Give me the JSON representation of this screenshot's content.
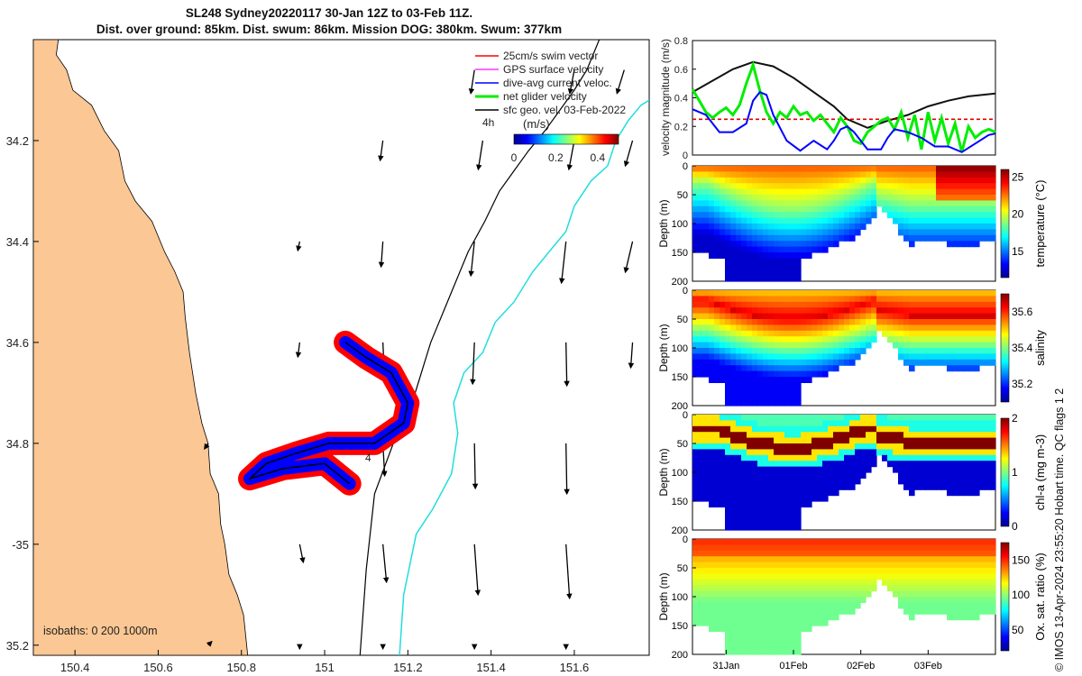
{
  "title_line1": "SL248 Sydney20220117 30-Jan 12Z to 03-Feb 11Z.",
  "title_line2": "Dist. over ground: 85km. Dist. swum: 86km. Mission DOG: 380km. Swum: 377km",
  "credit": "© IMOS 13-Apr-2024 23:55:20 Hobart time. QC flags 1  2",
  "colors": {
    "land": "#fbc794",
    "sea": "#ffffff",
    "swim_vector": "#ff0000",
    "gps": "#ff33ff",
    "dive_avg": "#0000ff",
    "net_glider": "#00ee00",
    "sfc_geo": "#000000",
    "isobath_200": "#000000",
    "isobath_1000": "#22dddd",
    "magnitude_black": "#111111",
    "red_dashed": "#dd0000"
  },
  "chart_data": [
    {
      "type": "map",
      "name": "glider-track-map",
      "xlim": [
        150.3,
        151.78
      ],
      "ylim": [
        -35.22,
        -34.0
      ],
      "x_ticks": [
        150.4,
        150.6,
        150.8,
        151,
        151.2,
        151.4,
        151.6
      ],
      "x_tick_labels": [
        "150.4",
        "150.6",
        "150.8",
        "151",
        "151.2",
        "151.4",
        "151.6"
      ],
      "y_ticks": [
        -34.2,
        -34.4,
        -34.6,
        -34.8,
        -35,
        -35.2
      ],
      "y_tick_labels": [
        "34.2",
        "34.4",
        "34.6",
        "34.8",
        "-35",
        "35.2"
      ],
      "legend": {
        "placement": "top-right",
        "items": [
          {
            "label": "25cm/s swim vector",
            "color": "#ff0000"
          },
          {
            "label": "GPS surface velocity",
            "color": "#ff33ff"
          },
          {
            "label": "dive-avg current veloc.",
            "color": "#0000ff"
          },
          {
            "label": "net glider velocity",
            "color": "#00ee00"
          },
          {
            "label": "sfc geo. vel. 03-Feb-2022",
            "color": "#000000"
          }
        ]
      },
      "colorbar": {
        "label": "(m/s)",
        "ticks": [
          0,
          0.2,
          0.4
        ],
        "tick_labels": [
          "0",
          "0.2",
          "0.4"
        ],
        "range": [
          0,
          0.5
        ]
      },
      "label_4h": "4h",
      "track_label": "4",
      "isobaths_label": "isobaths: 0   200  1000m",
      "coastline": [
        [
          150.3,
          -34.0
        ],
        [
          150.36,
          -34.0
        ],
        [
          150.355,
          -34.03
        ],
        [
          150.38,
          -34.06
        ],
        [
          150.395,
          -34.1
        ],
        [
          150.44,
          -34.13
        ],
        [
          150.47,
          -34.18
        ],
        [
          150.505,
          -34.22
        ],
        [
          150.52,
          -34.28
        ],
        [
          150.545,
          -34.32
        ],
        [
          150.585,
          -34.36
        ],
        [
          150.615,
          -34.42
        ],
        [
          150.64,
          -34.46
        ],
        [
          150.66,
          -34.5
        ],
        [
          150.665,
          -34.55
        ],
        [
          150.675,
          -34.62
        ],
        [
          150.69,
          -34.7
        ],
        [
          150.705,
          -34.76
        ],
        [
          150.72,
          -34.8
        ],
        [
          150.725,
          -34.86
        ],
        [
          150.745,
          -34.9
        ],
        [
          150.75,
          -34.96
        ],
        [
          150.76,
          -35.0
        ],
        [
          150.77,
          -35.06
        ],
        [
          150.79,
          -35.1
        ],
        [
          150.805,
          -35.14
        ],
        [
          150.81,
          -35.18
        ],
        [
          150.815,
          -35.22
        ],
        [
          150.3,
          -35.22
        ]
      ],
      "isobath_200": [
        [
          151.085,
          -35.22
        ],
        [
          151.1,
          -35.05
        ],
        [
          151.12,
          -34.9
        ],
        [
          151.165,
          -34.8
        ],
        [
          151.21,
          -34.72
        ],
        [
          151.255,
          -34.6
        ],
        [
          151.305,
          -34.5
        ],
        [
          151.345,
          -34.42
        ],
        [
          151.385,
          -34.36
        ],
        [
          151.42,
          -34.3
        ],
        [
          151.455,
          -34.26
        ],
        [
          151.49,
          -34.22
        ],
        [
          151.53,
          -34.18
        ],
        [
          151.565,
          -34.14
        ],
        [
          151.6,
          -34.1
        ],
        [
          151.63,
          -34.06
        ],
        [
          151.66,
          -34.0
        ]
      ],
      "isobath_1000": [
        [
          151.18,
          -35.22
        ],
        [
          151.19,
          -35.1
        ],
        [
          151.22,
          -34.98
        ],
        [
          151.26,
          -34.93
        ],
        [
          151.305,
          -34.86
        ],
        [
          151.32,
          -34.78
        ],
        [
          151.31,
          -34.72
        ],
        [
          151.335,
          -34.66
        ],
        [
          151.38,
          -34.62
        ],
        [
          151.41,
          -34.56
        ],
        [
          151.455,
          -34.52
        ],
        [
          151.5,
          -34.46
        ],
        [
          151.54,
          -34.42
        ],
        [
          151.58,
          -34.38
        ],
        [
          151.6,
          -34.33
        ],
        [
          151.64,
          -34.28
        ],
        [
          151.68,
          -34.25
        ],
        [
          151.7,
          -34.2
        ],
        [
          151.73,
          -34.16
        ],
        [
          151.76,
          -34.13
        ],
        [
          151.78,
          -34.12
        ]
      ],
      "glider_track": [
        [
          151.05,
          -34.6
        ],
        [
          151.1,
          -34.63
        ],
        [
          151.16,
          -34.66
        ],
        [
          151.2,
          -34.72
        ],
        [
          151.19,
          -34.76
        ],
        [
          151.12,
          -34.8
        ],
        [
          151.01,
          -34.8
        ],
        [
          150.93,
          -34.82
        ],
        [
          150.86,
          -34.84
        ],
        [
          150.82,
          -34.87
        ],
        [
          150.9,
          -34.85
        ],
        [
          151.0,
          -34.84
        ],
        [
          151.06,
          -34.88
        ]
      ],
      "sfc_geo_vectors": [
        {
          "lon": 151.36,
          "lat": -34.06,
          "u": -0.04,
          "v": -0.26
        },
        {
          "lon": 151.6,
          "lat": -34.06,
          "u": -0.05,
          "v": -0.26
        },
        {
          "lon": 151.72,
          "lat": -34.06,
          "u": -0.08,
          "v": -0.26
        },
        {
          "lon": 151.14,
          "lat": -34.2,
          "u": -0.03,
          "v": -0.22
        },
        {
          "lon": 151.38,
          "lat": -34.2,
          "u": -0.05,
          "v": -0.32
        },
        {
          "lon": 151.6,
          "lat": -34.2,
          "u": -0.06,
          "v": -0.32
        },
        {
          "lon": 151.74,
          "lat": -34.2,
          "u": -0.08,
          "v": -0.28
        },
        {
          "lon": 150.94,
          "lat": -34.4,
          "u": -0.02,
          "v": -0.1
        },
        {
          "lon": 151.14,
          "lat": -34.4,
          "u": -0.02,
          "v": -0.28
        },
        {
          "lon": 151.36,
          "lat": -34.4,
          "u": -0.04,
          "v": -0.38
        },
        {
          "lon": 151.58,
          "lat": -34.4,
          "u": -0.05,
          "v": -0.46
        },
        {
          "lon": 151.74,
          "lat": -34.4,
          "u": -0.08,
          "v": -0.34
        },
        {
          "lon": 150.94,
          "lat": -34.6,
          "u": -0.02,
          "v": -0.16
        },
        {
          "lon": 151.14,
          "lat": -34.6,
          "u": 0.01,
          "v": -0.22
        },
        {
          "lon": 151.36,
          "lat": -34.6,
          "u": -0.02,
          "v": -0.46
        },
        {
          "lon": 151.58,
          "lat": -34.6,
          "u": 0.01,
          "v": -0.48
        },
        {
          "lon": 151.74,
          "lat": -34.6,
          "u": -0.02,
          "v": -0.28
        },
        {
          "lon": 150.72,
          "lat": -34.8,
          "u": -0.04,
          "v": -0.06
        },
        {
          "lon": 151.14,
          "lat": -34.8,
          "u": 0.02,
          "v": -0.36
        },
        {
          "lon": 151.36,
          "lat": -34.8,
          "u": 0.01,
          "v": -0.5
        },
        {
          "lon": 151.58,
          "lat": -34.8,
          "u": 0.01,
          "v": -0.56
        },
        {
          "lon": 150.94,
          "lat": -35.0,
          "u": 0.04,
          "v": -0.2
        },
        {
          "lon": 151.14,
          "lat": -35.0,
          "u": 0.04,
          "v": -0.42
        },
        {
          "lon": 151.36,
          "lat": -35.0,
          "u": 0.04,
          "v": -0.56
        },
        {
          "lon": 151.58,
          "lat": -35.0,
          "u": 0.04,
          "v": -0.6
        },
        {
          "lon": 150.72,
          "lat": -35.2,
          "u": 0.04,
          "v": 0.04
        },
        {
          "lon": 150.94,
          "lat": -35.2,
          "u": 0.0,
          "v": -0.04
        },
        {
          "lon": 151.14,
          "lat": -35.2,
          "u": 0.0,
          "v": -0.04
        },
        {
          "lon": 151.36,
          "lat": -35.2,
          "u": 0.0,
          "v": -0.04
        },
        {
          "lon": 151.58,
          "lat": -35.2,
          "u": 0.0,
          "v": -0.04
        }
      ]
    },
    {
      "type": "line",
      "name": "velocity-magnitude",
      "ylabel": "velocity magnitude (m/s)",
      "ylim": [
        0,
        0.8
      ],
      "y_ticks": [
        0,
        0.2,
        0.4,
        0.6,
        0.8
      ],
      "y_tick_labels": [
        "0",
        "0.2",
        "0.4",
        "0.6",
        "0.8"
      ],
      "x_range_days": [
        0,
        4.5
      ],
      "series": [
        {
          "name": "black-magnitude",
          "color": "#111111",
          "x": [
            0,
            0.3,
            0.6,
            0.9,
            1.2,
            1.5,
            1.8,
            2.1,
            2.3,
            2.6,
            2.9,
            3.2,
            3.5,
            3.8,
            4.1,
            4.5
          ],
          "y": [
            0.44,
            0.52,
            0.6,
            0.65,
            0.62,
            0.54,
            0.44,
            0.34,
            0.25,
            0.19,
            0.24,
            0.28,
            0.34,
            0.38,
            0.41,
            0.43
          ]
        },
        {
          "name": "red-dashed",
          "color": "#dd0000",
          "x": [
            0,
            4.5
          ],
          "y": [
            0.25,
            0.25
          ]
        },
        {
          "name": "green-net",
          "color": "#00ee00",
          "x": [
            0,
            0.1,
            0.2,
            0.3,
            0.4,
            0.5,
            0.6,
            0.7,
            0.8,
            0.9,
            1.0,
            1.1,
            1.2,
            1.3,
            1.4,
            1.5,
            1.6,
            1.7,
            1.8,
            1.9,
            2.0,
            2.1,
            2.2,
            2.3,
            2.4,
            2.5,
            2.6,
            2.7,
            2.8,
            2.9,
            3.0,
            3.1,
            3.2,
            3.3,
            3.4,
            3.5,
            3.6,
            3.7,
            3.8,
            3.9,
            4.0,
            4.1,
            4.2,
            4.3,
            4.4,
            4.5
          ],
          "y": [
            0.46,
            0.38,
            0.3,
            0.26,
            0.3,
            0.33,
            0.28,
            0.35,
            0.5,
            0.63,
            0.45,
            0.3,
            0.22,
            0.3,
            0.26,
            0.34,
            0.28,
            0.3,
            0.24,
            0.28,
            0.22,
            0.16,
            0.26,
            0.2,
            0.1,
            0.08,
            0.16,
            0.2,
            0.24,
            0.26,
            0.18,
            0.3,
            0.12,
            0.28,
            0.04,
            0.3,
            0.1,
            0.26,
            0.08,
            0.22,
            0.02,
            0.2,
            0.12,
            0.16,
            0.18,
            0.16
          ]
        },
        {
          "name": "blue-dive-avg",
          "color": "#0000ff",
          "x": [
            0,
            0.2,
            0.4,
            0.6,
            0.8,
            0.9,
            1.0,
            1.1,
            1.2,
            1.4,
            1.6,
            1.8,
            2.0,
            2.1,
            2.2,
            2.3,
            2.4,
            2.6,
            2.8,
            2.9,
            3.0,
            3.2,
            3.4,
            3.6,
            3.8,
            4.0,
            4.2,
            4.4,
            4.5
          ],
          "y": [
            0.32,
            0.28,
            0.16,
            0.16,
            0.22,
            0.38,
            0.44,
            0.42,
            0.28,
            0.1,
            0.03,
            0.1,
            0.04,
            0.1,
            0.18,
            0.2,
            0.16,
            0.04,
            0.04,
            0.12,
            0.18,
            0.16,
            0.12,
            0.06,
            0.06,
            0.02,
            0.08,
            0.14,
            0.15
          ]
        }
      ]
    },
    {
      "type": "heatmap",
      "name": "temperature-section",
      "variable": "temperature",
      "colorbar_label": "temperature (°C)",
      "cmin": 11.5,
      "cmax": 26,
      "cbar_ticks": [
        15,
        20,
        25
      ],
      "cbar_tick_labels": [
        "15",
        "20",
        "25"
      ],
      "y_ticks": [
        0,
        50,
        100,
        150,
        200
      ],
      "y_tick_labels": [
        "0",
        "50",
        "100",
        "150",
        "200"
      ],
      "ylabel": "Depth (m)",
      "surface_value": 23,
      "deep_value": 13,
      "warm_top_last_day": 26
    },
    {
      "type": "heatmap",
      "name": "salinity-section",
      "variable": "salinity",
      "colorbar_label": "salinity",
      "cmin": 35.1,
      "cmax": 35.7,
      "cbar_ticks": [
        35.2,
        35.4,
        35.6
      ],
      "cbar_tick_labels": [
        "35.2",
        "35.4",
        "35.6"
      ],
      "y_ticks": [
        0,
        50,
        100,
        150,
        200
      ],
      "y_tick_labels": [
        "0",
        "50",
        "100",
        "150",
        "200"
      ],
      "ylabel": "Depth (m)",
      "surface_value": 35.45,
      "max_value": 35.65,
      "deep_value": 35.2
    },
    {
      "type": "heatmap",
      "name": "chlorophyll-section",
      "variable": "chl-a",
      "colorbar_label": "chl-a (mg m-3)",
      "cmin": 0,
      "cmax": 2,
      "cbar_ticks": [
        0,
        1,
        2
      ],
      "cbar_tick_labels": [
        "0",
        "1",
        "2"
      ],
      "y_ticks": [
        0,
        50,
        100,
        150,
        200
      ],
      "y_tick_labels": [
        "0",
        "50",
        "100",
        "150",
        "200"
      ],
      "ylabel": "Depth (m)",
      "max_value": 2.0,
      "deep_value": 0.1
    },
    {
      "type": "heatmap",
      "name": "oxygen-section",
      "variable": "oxygen",
      "colorbar_label": "Ox. sat. ratio (%)",
      "cmin": 20,
      "cmax": 175,
      "cbar_ticks": [
        50,
        100,
        150
      ],
      "cbar_tick_labels": [
        "50",
        "100",
        "150"
      ],
      "y_ticks": [
        0,
        50,
        100,
        150,
        200
      ],
      "y_tick_labels": [
        "0",
        "50",
        "100",
        "150",
        "200"
      ],
      "ylabel": "Depth (m)",
      "surface_value": 140,
      "deep_value": 95,
      "x_ticks_days": [
        0.5,
        1.5,
        2.5,
        3.5
      ],
      "x_tick_labels": [
        "31Jan",
        "01Feb",
        "02Feb",
        "03Feb"
      ]
    }
  ]
}
